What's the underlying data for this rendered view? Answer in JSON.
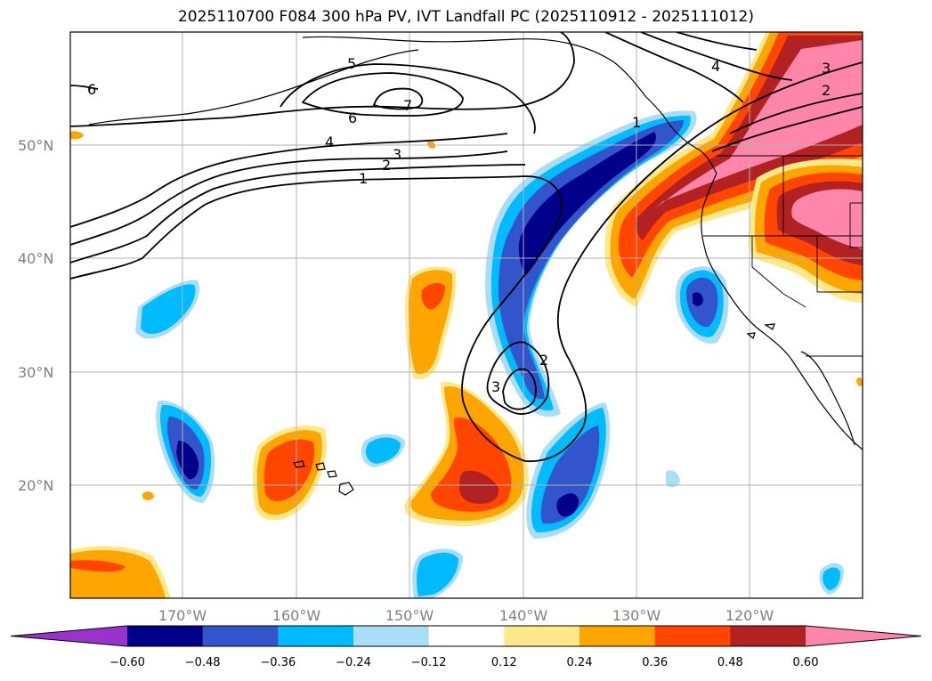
{
  "title": "2025110700 F084 300 hPa PV, IVT Landfall PC (2025110912 - 2025111012)",
  "lat_labels": [
    "50°N",
    "40°N",
    "30°N",
    "20°N"
  ],
  "lon_labels": [
    "170°W",
    "160°W",
    "150°W",
    "140°W",
    "130°W",
    "120°W"
  ],
  "colorbar": {
    "levels": [
      "−0.60",
      "−0.48",
      "−0.36",
      "−0.24",
      "−0.12",
      "0.12",
      "0.24",
      "0.36",
      "0.48",
      "0.60"
    ],
    "colors": [
      "#9933cc",
      "#00008b",
      "#3355cc",
      "#00bbff",
      "#aaddf8",
      "#ffffff",
      "#ffe88a",
      "#ffa500",
      "#ff4500",
      "#b22222",
      "#ff85aa"
    ]
  },
  "contour_labels": [
    "7",
    "6",
    "5",
    "6",
    "4",
    "3",
    "2",
    "1",
    "1",
    "2",
    "3",
    "4",
    "3",
    "2"
  ],
  "field_colors": {
    "pv_line": "#000000",
    "grid": "#b0b0b0",
    "coast": "#000000"
  }
}
